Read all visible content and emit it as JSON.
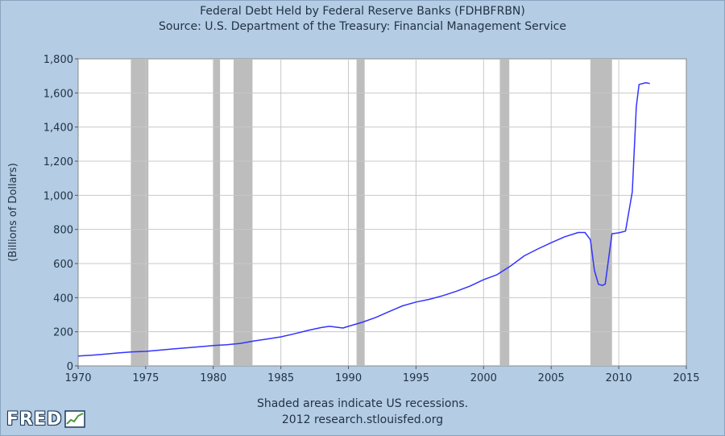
{
  "chart_data": {
    "type": "line",
    "title": "Federal Debt Held by Federal Reserve Banks (FDHBFRBN)",
    "subtitle": "Source: U.S. Department of the Treasury: Financial Management Service",
    "ylabel": "(Billions of Dollars)",
    "xlabel": "",
    "xlim": [
      1970,
      2015
    ],
    "ylim": [
      0,
      1800
    ],
    "x_ticks": [
      "1970",
      "1975",
      "1980",
      "1985",
      "1990",
      "1995",
      "2000",
      "2005",
      "2010",
      "2015"
    ],
    "y_ticks": [
      "0",
      "200",
      "400",
      "600",
      "800",
      "1,000",
      "1,200",
      "1,400",
      "1,600",
      "1,800"
    ],
    "grid": true,
    "line_color": "#3333ff",
    "recession_color": "#bdbdbd",
    "recessions": [
      [
        1973.9,
        1975.2
      ],
      [
        1980.0,
        1980.5
      ],
      [
        1981.5,
        1982.9
      ],
      [
        1990.6,
        1991.2
      ],
      [
        2001.2,
        2001.9
      ],
      [
        2007.9,
        2009.5
      ]
    ],
    "series": [
      {
        "x": [
          1970.0,
          1971.0,
          1972.0,
          1973.0,
          1974.0,
          1975.0,
          1976.0,
          1977.0,
          1978.0,
          1979.0,
          1980.0,
          1981.0,
          1982.0,
          1983.0,
          1984.0,
          1985.0,
          1986.0,
          1987.0,
          1988.0,
          1988.6,
          1989.0,
          1989.6,
          1990.0,
          1991.0,
          1992.0,
          1993.0,
          1994.0,
          1995.0,
          1996.0,
          1997.0,
          1998.0,
          1999.0,
          2000.0,
          2001.0,
          2002.0,
          2003.0,
          2004.0,
          2005.0,
          2006.0,
          2007.0,
          2007.5,
          2007.9,
          2008.2,
          2008.5,
          2008.8,
          2009.0,
          2009.2,
          2009.5,
          2010.0,
          2010.5,
          2011.0,
          2011.3,
          2011.5,
          2012.0,
          2012.3
        ],
        "values": [
          58,
          63,
          69,
          76,
          82,
          85,
          92,
          99,
          106,
          112,
          119,
          124,
          132,
          146,
          158,
          170,
          188,
          208,
          225,
          232,
          228,
          222,
          232,
          255,
          283,
          318,
          352,
          374,
          390,
          412,
          438,
          468,
          505,
          535,
          586,
          645,
          685,
          722,
          757,
          782,
          782,
          740,
          560,
          478,
          472,
          480,
          600,
          775,
          780,
          790,
          1020,
          1520,
          1650,
          1660,
          1655
        ]
      }
    ]
  },
  "footer": {
    "note": "Shaded areas indicate US recessions.",
    "source": "2012 research.stlouisfed.org"
  },
  "logo": {
    "text": "FRED"
  }
}
